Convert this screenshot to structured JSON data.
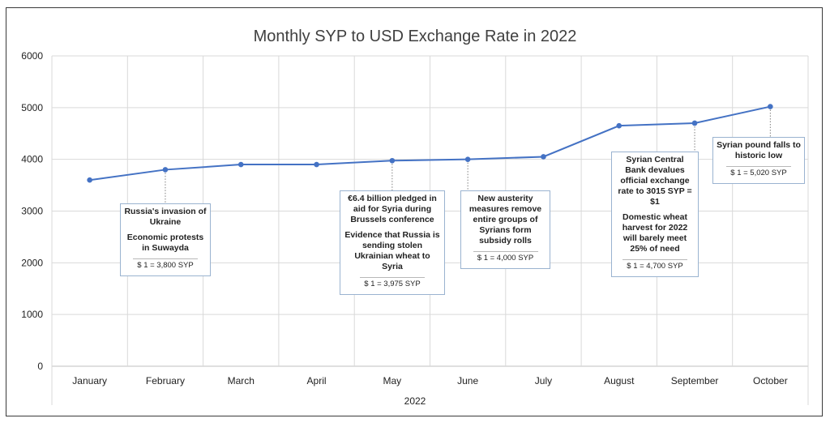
{
  "chart_data": {
    "type": "line",
    "title": "Monthly SYP to USD Exchange Rate in 2022",
    "xlabel": "2022",
    "ylabel": "",
    "ylim": [
      0,
      6000
    ],
    "yticks": [
      "0",
      "1000",
      "2000",
      "3000",
      "4000",
      "5000",
      "6000"
    ],
    "grid": true,
    "categories": [
      "January",
      "February",
      "March",
      "April",
      "May",
      "June",
      "July",
      "August",
      "September",
      "October"
    ],
    "series": [
      {
        "values": [
          3600,
          3800,
          3900,
          3900,
          3975,
          4000,
          4050,
          4650,
          4700,
          5020
        ],
        "color": "#4472c4"
      }
    ],
    "annotations": [
      {
        "category": "February",
        "events": [
          "Russia's invasion of Ukraine",
          "Economic protests in Suwayda"
        ],
        "value_label": "$ 1 = 3,800 SYP"
      },
      {
        "category": "May",
        "events": [
          "€6.4 billion pledged in aid for Syria during Brussels conference",
          "Evidence that Russia is sending stolen Ukrainian wheat to Syria"
        ],
        "value_label": "$ 1 = 3,975 SYP"
      },
      {
        "category": "June",
        "events": [
          "New austerity measures remove entire groups of Syrians form subsidy rolls"
        ],
        "value_label": "$ 1 = 4,000 SYP"
      },
      {
        "category": "September",
        "events": [
          "Syrian Central Bank devalues official exchange rate to 3015 SYP = $1",
          "Domestic wheat harvest for 2022 will barely meet 25% of need"
        ],
        "value_label": "$ 1 = 4,700 SYP"
      },
      {
        "category": "October",
        "events": [
          "Syrian pound falls to historic low"
        ],
        "value_label": "$ 1 = 5,020 SYP"
      }
    ]
  }
}
